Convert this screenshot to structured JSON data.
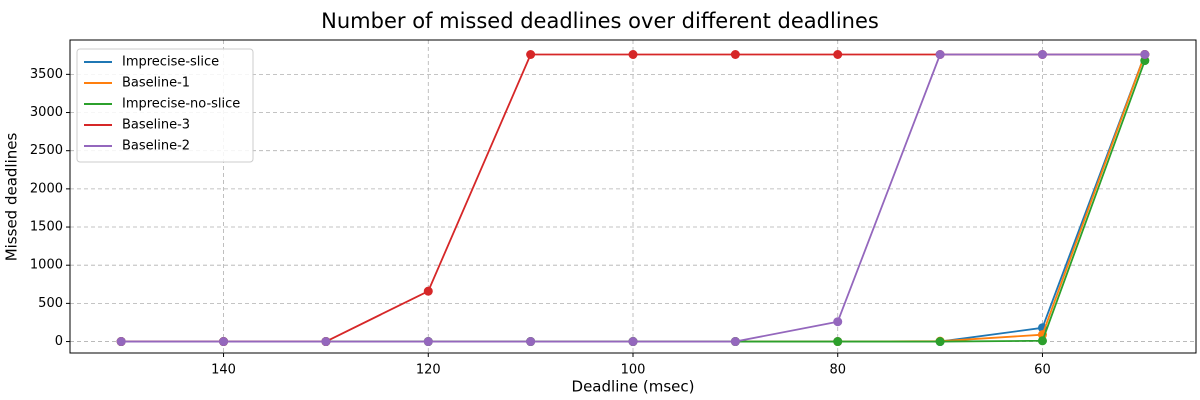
{
  "chart_data": {
    "type": "line",
    "title": "Number of missed deadlines over different deadlines",
    "xlabel": "Deadline (msec)",
    "ylabel": "Missed deadlines",
    "x_inverted": true,
    "xlim": [
      155,
      45
    ],
    "ylim": [
      -150,
      3950
    ],
    "x_ticks": [
      140,
      120,
      100,
      80,
      60
    ],
    "y_ticks": [
      0,
      500,
      1000,
      1500,
      2000,
      2500,
      3000,
      3500
    ],
    "grid": true,
    "grid_style": "dashed",
    "legend_position": "upper-left",
    "x": [
      150,
      140,
      130,
      120,
      110,
      100,
      90,
      80,
      70,
      60,
      50
    ],
    "series": [
      {
        "name": "Imprecise-slice",
        "color": "#1f77b4",
        "values": [
          0,
          0,
          0,
          0,
          0,
          0,
          0,
          0,
          0,
          180,
          3760
        ]
      },
      {
        "name": "Baseline-1",
        "color": "#ff7f0e",
        "values": [
          0,
          0,
          0,
          0,
          0,
          0,
          0,
          0,
          5,
          90,
          3760
        ]
      },
      {
        "name": "Imprecise-no-slice",
        "color": "#2ca02c",
        "values": [
          0,
          0,
          0,
          0,
          0,
          0,
          0,
          0,
          0,
          10,
          3680
        ]
      },
      {
        "name": "Baseline-3",
        "color": "#d62728",
        "values": [
          0,
          0,
          0,
          660,
          3760,
          3760,
          3760,
          3760,
          3760,
          3760,
          3760
        ]
      },
      {
        "name": "Baseline-2",
        "color": "#9467bd",
        "values": [
          0,
          0,
          0,
          0,
          0,
          0,
          0,
          260,
          3760,
          3760,
          3760
        ]
      }
    ]
  }
}
